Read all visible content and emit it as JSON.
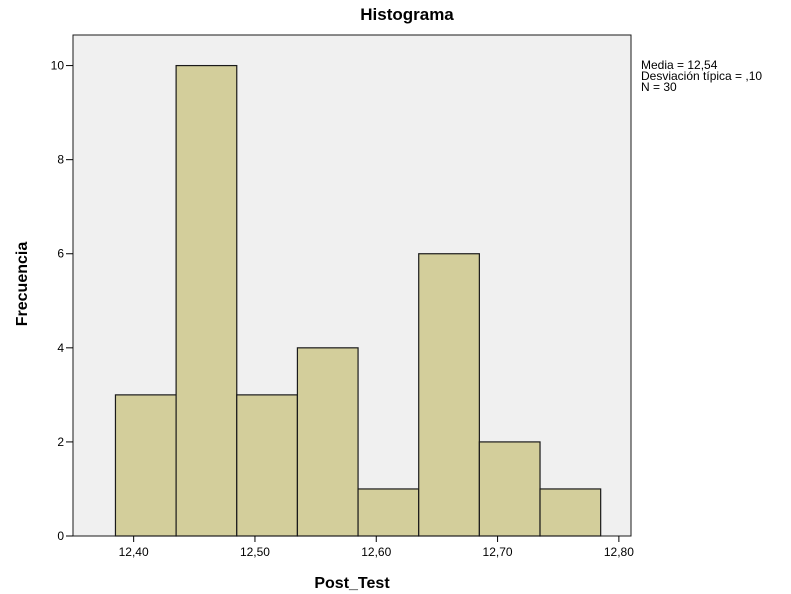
{
  "chart_data": {
    "type": "histogram",
    "title": "Histograma",
    "xlabel": "Post_Test",
    "ylabel": "Frecuencia",
    "bins": [
      {
        "start": 12.385,
        "end": 12.435,
        "count": 3
      },
      {
        "start": 12.435,
        "end": 12.485,
        "count": 10
      },
      {
        "start": 12.485,
        "end": 12.535,
        "count": 3
      },
      {
        "start": 12.535,
        "end": 12.585,
        "count": 4
      },
      {
        "start": 12.585,
        "end": 12.635,
        "count": 1
      },
      {
        "start": 12.635,
        "end": 12.685,
        "count": 6
      },
      {
        "start": 12.685,
        "end": 12.735,
        "count": 2
      },
      {
        "start": 12.735,
        "end": 12.785,
        "count": 1
      }
    ],
    "xlim": [
      12.35,
      12.81
    ],
    "ylim": [
      0,
      10.65
    ],
    "x_ticks": [
      {
        "value": 12.4,
        "label": "12,40"
      },
      {
        "value": 12.5,
        "label": "12,50"
      },
      {
        "value": 12.6,
        "label": "12,60"
      },
      {
        "value": 12.7,
        "label": "12,70"
      },
      {
        "value": 12.8,
        "label": "12,80"
      }
    ],
    "y_ticks": [
      {
        "value": 0,
        "label": "0"
      },
      {
        "value": 2,
        "label": "2"
      },
      {
        "value": 4,
        "label": "4"
      },
      {
        "value": 6,
        "label": "6"
      },
      {
        "value": 8,
        "label": "8"
      },
      {
        "value": 10,
        "label": "10"
      }
    ],
    "stats": [
      "Media = 12,54",
      "Desviación típica = ,10",
      "N = 30"
    ],
    "colors": {
      "bar_fill": "#d3ce9b",
      "bar_stroke": "#1a1a1a",
      "plot_background": "#f0f0f0"
    },
    "grid": false,
    "legend": "none"
  }
}
